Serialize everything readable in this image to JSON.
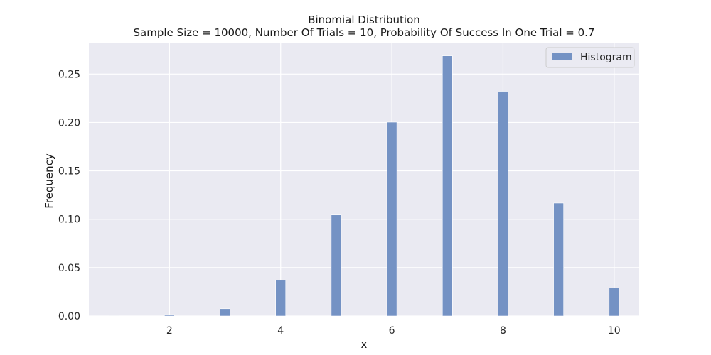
{
  "chart_data": {
    "type": "bar",
    "title": "Binomial Distribution",
    "subtitle": "Sample Size = 10000, Number Of Trials = 10, Probability Of Success In One Trial = 0.7",
    "xlabel": "x",
    "ylabel": "Frequency",
    "xlim": [
      0.55,
      10.45
    ],
    "ylim": [
      0,
      0.2825
    ],
    "xticks": [
      2,
      4,
      6,
      8,
      10
    ],
    "yticks": [
      0.0,
      0.05,
      0.1,
      0.15,
      0.2,
      0.25
    ],
    "ytick_labels": [
      "0.00",
      "0.05",
      "0.10",
      "0.15",
      "0.20",
      "0.25"
    ],
    "grid": true,
    "legend_position": "top-right",
    "series": [
      {
        "name": "Histogram",
        "color": "#7492c4",
        "x": [
          1,
          2,
          3,
          4,
          5,
          6,
          7,
          8,
          9,
          10
        ],
        "values": [
          0.0001,
          0.0014,
          0.0075,
          0.0369,
          0.1044,
          0.2003,
          0.2688,
          0.2322,
          0.1167,
          0.0289
        ]
      }
    ]
  },
  "colors": {
    "plot_background": "#eaeaf2",
    "grid": "#ffffff",
    "bar": "#7492c4"
  }
}
